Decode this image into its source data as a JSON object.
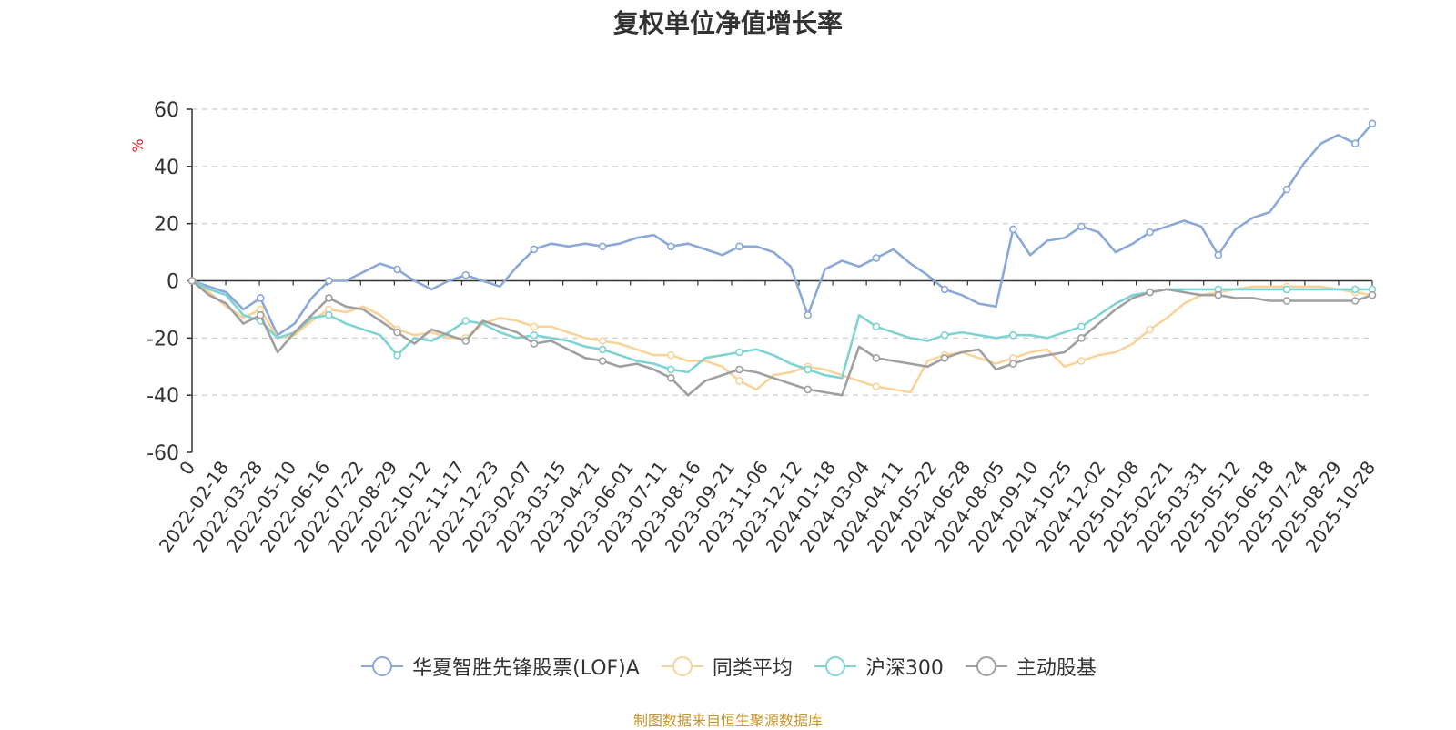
{
  "title": "复权单位净值增长率",
  "source_note": "制图数据来自恒生聚源数据库",
  "chart_data": {
    "type": "line",
    "title": "复权单位净值增长率",
    "ylabel": "%",
    "ylim": [
      -60,
      60
    ],
    "yticks": [
      60,
      40,
      20,
      0,
      -20,
      -40,
      -60
    ],
    "grid": true,
    "legend_position": "bottom",
    "x_tick_labels": [
      "0",
      "2022-02-18",
      "2022-03-28",
      "2022-05-10",
      "2022-06-16",
      "2022-07-22",
      "2022-08-29",
      "2022-10-12",
      "2022-11-17",
      "2022-12-23",
      "2023-02-07",
      "2023-03-15",
      "2023-04-21",
      "2023-06-01",
      "2023-07-11",
      "2023-08-16",
      "2023-09-21",
      "2023-11-06",
      "2023-12-12",
      "2024-01-18",
      "2024-03-04",
      "2024-04-11",
      "2024-05-22",
      "2024-06-28",
      "2024-08-05",
      "2024-09-10",
      "2024-10-25",
      "2024-12-02",
      "2025-01-08",
      "2025-02-21",
      "2025-03-31",
      "2025-05-12",
      "2025-06-18",
      "2025-07-24",
      "2025-08-29",
      "2025-10-28"
    ],
    "series": [
      {
        "name": "华夏智胜先锋股票(LOF)A",
        "color": "#8aa8d8",
        "values": [
          0,
          -2,
          -4,
          -10,
          -6,
          -19,
          -15,
          -6,
          0,
          0,
          3,
          6,
          4,
          0,
          -3,
          0,
          2,
          0,
          -2,
          5,
          11,
          13,
          12,
          13,
          12,
          13,
          15,
          16,
          12,
          13,
          11,
          9,
          12,
          12,
          10,
          5,
          -12,
          4,
          7,
          5,
          8,
          11,
          6,
          2,
          -3,
          -5,
          -8,
          -9,
          18,
          9,
          14,
          15,
          19,
          17,
          10,
          13,
          17,
          19,
          21,
          19,
          9,
          18,
          22,
          24,
          32,
          41,
          48,
          51,
          48,
          55
        ]
      },
      {
        "name": "同类平均",
        "color": "#f8d49a",
        "values": [
          0,
          -4,
          -9,
          -13,
          -10,
          -20,
          -19,
          -14,
          -10,
          -11,
          -9,
          -12,
          -17,
          -19,
          -18,
          -20,
          -20,
          -15,
          -13,
          -14,
          -16,
          -16,
          -18,
          -20,
          -21,
          -22,
          -24,
          -26,
          -26,
          -28,
          -28,
          -30,
          -35,
          -38,
          -33,
          -32,
          -30,
          -31,
          -33,
          -35,
          -37,
          -38,
          -39,
          -28,
          -26,
          -25,
          -27,
          -29,
          -27,
          -25,
          -24,
          -30,
          -28,
          -26,
          -25,
          -22,
          -17,
          -13,
          -8,
          -5,
          -4,
          -3,
          -2,
          -2,
          -2,
          -2,
          -2,
          -3,
          -4,
          -5
        ]
      },
      {
        "name": "沪深300",
        "color": "#7fd3d3",
        "values": [
          0,
          -3,
          -5,
          -12,
          -14,
          -20,
          -18,
          -13,
          -12,
          -15,
          -17,
          -19,
          -26,
          -20,
          -21,
          -18,
          -14,
          -15,
          -18,
          -20,
          -19,
          -20,
          -21,
          -23,
          -24,
          -26,
          -28,
          -29,
          -31,
          -32,
          -27,
          -26,
          -25,
          -24,
          -26,
          -29,
          -31,
          -33,
          -34,
          -12,
          -16,
          -18,
          -20,
          -21,
          -19,
          -18,
          -19,
          -20,
          -19,
          -19,
          -20,
          -18,
          -16,
          -12,
          -8,
          -5,
          -4,
          -3,
          -3,
          -3,
          -3,
          -3,
          -3,
          -3,
          -3,
          -3,
          -3,
          -3,
          -3,
          -3
        ]
      },
      {
        "name": "主动股基",
        "color": "#a0a0a0",
        "values": [
          0,
          -5,
          -8,
          -15,
          -12,
          -25,
          -18,
          -12,
          -6,
          -9,
          -10,
          -14,
          -18,
          -22,
          -17,
          -19,
          -21,
          -14,
          -16,
          -18,
          -22,
          -21,
          -24,
          -27,
          -28,
          -30,
          -29,
          -31,
          -34,
          -40,
          -35,
          -33,
          -31,
          -32,
          -34,
          -36,
          -38,
          -39,
          -40,
          -23,
          -27,
          -28,
          -29,
          -30,
          -27,
          -25,
          -24,
          -31,
          -29,
          -27,
          -26,
          -25,
          -20,
          -15,
          -10,
          -6,
          -4,
          -3,
          -4,
          -5,
          -5,
          -6,
          -6,
          -7,
          -7,
          -7,
          -7,
          -7,
          -7,
          -5
        ]
      }
    ]
  }
}
